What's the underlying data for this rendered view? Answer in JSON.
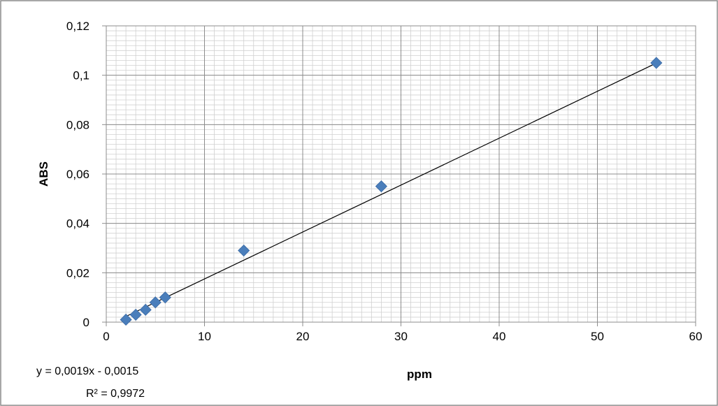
{
  "chart_data": {
    "type": "scatter",
    "xlabel": "ppm",
    "ylabel": "ABS",
    "xlim": [
      0,
      60
    ],
    "ylim": [
      0,
      0.12
    ],
    "x_ticks": [
      "0",
      "10",
      "20",
      "30",
      "40",
      "50",
      "60"
    ],
    "y_ticks": [
      "0",
      "0,02",
      "0,04",
      "0,06",
      "0,08",
      "0,1",
      "0,12"
    ],
    "grid": true,
    "series": [
      {
        "marker": "diamond",
        "color": "#4a7ebb",
        "points": [
          {
            "x": 2,
            "y": 0.001
          },
          {
            "x": 3,
            "y": 0.003
          },
          {
            "x": 4,
            "y": 0.005
          },
          {
            "x": 5,
            "y": 0.008
          },
          {
            "x": 6,
            "y": 0.01
          },
          {
            "x": 14,
            "y": 0.029
          },
          {
            "x": 28,
            "y": 0.055
          },
          {
            "x": 56,
            "y": 0.105
          }
        ]
      }
    ],
    "trendline": {
      "type": "linear",
      "slope": 0.0019,
      "intercept": -0.0015,
      "equation_label": "y = 0,0019x - 0,0015",
      "r2_label": "R² = 0,9972",
      "color": "#000000"
    }
  }
}
